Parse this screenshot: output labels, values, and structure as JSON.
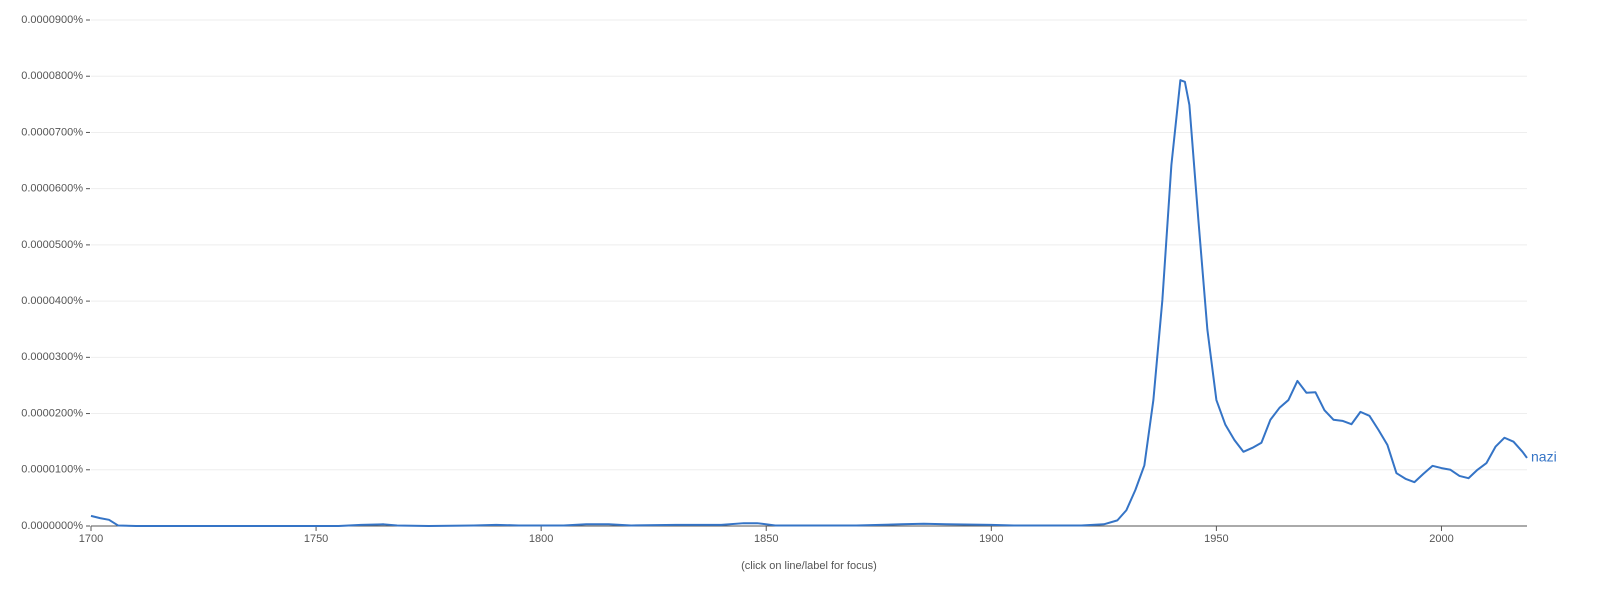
{
  "chart_data": {
    "type": "line",
    "footer": "(click on line/label for focus)",
    "x": [
      1700,
      1702,
      1704,
      1706,
      1710,
      1720,
      1730,
      1740,
      1750,
      1755,
      1760,
      1765,
      1768,
      1775,
      1785,
      1790,
      1795,
      1800,
      1805,
      1810,
      1815,
      1820,
      1830,
      1840,
      1845,
      1848,
      1852,
      1860,
      1870,
      1880,
      1885,
      1890,
      1900,
      1905,
      1910,
      1915,
      1920,
      1925,
      1928,
      1930,
      1932,
      1934,
      1936,
      1938,
      1940,
      1942,
      1943,
      1944,
      1946,
      1948,
      1950,
      1952,
      1954,
      1956,
      1958,
      1960,
      1962,
      1964,
      1966,
      1968,
      1970,
      1972,
      1974,
      1976,
      1978,
      1980,
      1982,
      1984,
      1986,
      1988,
      1990,
      1992,
      1994,
      1996,
      1998,
      2000,
      2002,
      2004,
      2006,
      2008,
      2010,
      2012,
      2014,
      2016,
      2018,
      2019
    ],
    "series": [
      {
        "name": "nazi",
        "color": "#3574c6",
        "values": [
          1.8e-06,
          1.4e-06,
          1.1e-06,
          1e-07,
          0,
          0,
          0,
          0,
          0,
          0,
          2e-07,
          3e-07,
          1e-07,
          0,
          1e-07,
          2e-07,
          1e-07,
          1e-07,
          1e-07,
          3e-07,
          3e-07,
          1e-07,
          2e-07,
          2e-07,
          5e-07,
          5e-07,
          1e-07,
          1e-07,
          1e-07,
          3e-07,
          4e-07,
          3e-07,
          2e-07,
          1e-07,
          1e-07,
          1e-07,
          1e-07,
          3e-07,
          1e-06,
          2.8e-06,
          6.4e-06,
          1.08e-05,
          2.24e-05,
          4.02e-05,
          6.42e-05,
          7.93e-05,
          7.9e-05,
          7.49e-05,
          5.44e-05,
          3.49e-05,
          2.24e-05,
          1.8e-05,
          1.53e-05,
          1.32e-05,
          1.39e-05,
          1.48e-05,
          1.89e-05,
          2.1e-05,
          2.24e-05,
          2.58e-05,
          2.37e-05,
          2.38e-05,
          2.06e-05,
          1.89e-05,
          1.87e-05,
          1.81e-05,
          2.03e-05,
          1.96e-05,
          1.71e-05,
          1.44e-05,
          9.4e-06,
          8.4e-06,
          7.8e-06,
          9.3e-06,
          1.07e-05,
          1.03e-05,
          1e-05,
          8.9e-06,
          8.5e-06,
          1e-05,
          1.12e-05,
          1.41e-05,
          1.57e-05,
          1.5e-05,
          1.32e-05,
          1.21e-05
        ]
      }
    ],
    "xlim": [
      1700,
      2019
    ],
    "xticks": [
      1700,
      1750,
      1800,
      1850,
      1900,
      1950,
      2000
    ],
    "ylim": [
      0,
      9e-05
    ],
    "yticks": [
      {
        "value": 0,
        "label": "0.0000000%"
      },
      {
        "value": 1e-05,
        "label": "0.0000100%"
      },
      {
        "value": 2e-05,
        "label": "0.0000200%"
      },
      {
        "value": 3e-05,
        "label": "0.0000300%"
      },
      {
        "value": 4e-05,
        "label": "0.0000400%"
      },
      {
        "value": 5e-05,
        "label": "0.0000500%"
      },
      {
        "value": 6e-05,
        "label": "0.0000600%"
      },
      {
        "value": 7e-05,
        "label": "0.0000700%"
      },
      {
        "value": 8e-05,
        "label": "0.0000800%"
      },
      {
        "value": 9e-05,
        "label": "0.0000900%"
      }
    ],
    "grid": true
  }
}
